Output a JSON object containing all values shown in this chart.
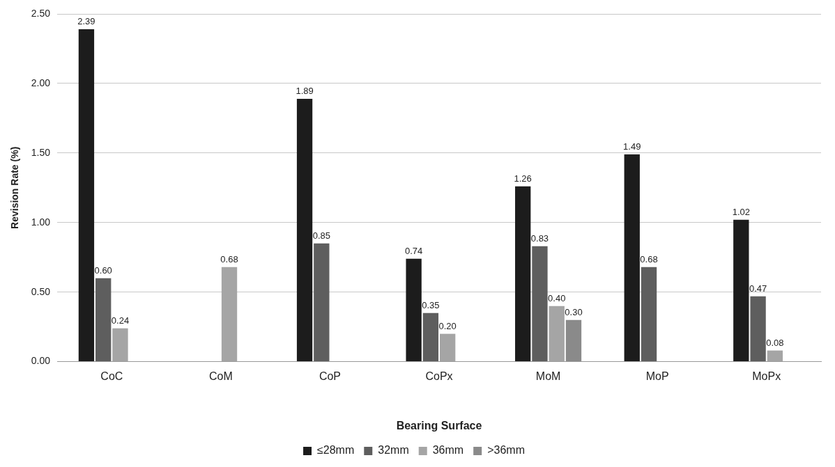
{
  "chart_data": {
    "type": "bar",
    "xlabel": "Bearing Surface",
    "ylabel": "Revision Rate (%)",
    "categories": [
      "CoC",
      "CoM",
      "CoP",
      "CoPx",
      "MoM",
      "MoP",
      "MoPx"
    ],
    "series": [
      {
        "name": "≤28mm",
        "color": "#1c1c1c",
        "values": [
          2.39,
          null,
          1.89,
          0.74,
          1.26,
          1.49,
          1.02
        ],
        "value_labels": [
          "2.39",
          null,
          "1.89",
          "0.74",
          "1.26",
          "1.49",
          "1.02"
        ]
      },
      {
        "name": "32mm",
        "color": "#5e5e5e",
        "values": [
          0.6,
          null,
          0.85,
          0.35,
          0.83,
          0.68,
          0.47
        ],
        "value_labels": [
          "0.60",
          null,
          "0.85",
          "0.35",
          "0.83",
          "0.68",
          "0.47"
        ]
      },
      {
        "name": "36mm",
        "color": "#a5a5a5",
        "values": [
          0.24,
          0.68,
          null,
          0.2,
          0.4,
          null,
          0.08
        ],
        "value_labels": [
          "0.24",
          "0.68",
          null,
          "0.20",
          "0.40",
          null,
          "0.08"
        ]
      },
      {
        "name": ">36mm",
        "color": "#8a8a8a",
        "values": [
          null,
          null,
          null,
          null,
          0.3,
          null,
          null
        ],
        "value_labels": [
          null,
          null,
          null,
          null,
          "0.30",
          null,
          null
        ]
      }
    ],
    "ylim": [
      0,
      2.5
    ],
    "yticks": [
      {
        "value": 0,
        "label": "0.00"
      },
      {
        "value": 0.5,
        "label": "0.50"
      },
      {
        "value": 1,
        "label": "1.00"
      },
      {
        "value": 1.5,
        "label": "1.50"
      },
      {
        "value": 2,
        "label": "2.00"
      },
      {
        "value": 2.5,
        "label": "2.50"
      }
    ],
    "grid": "y",
    "legend": "bottom"
  }
}
